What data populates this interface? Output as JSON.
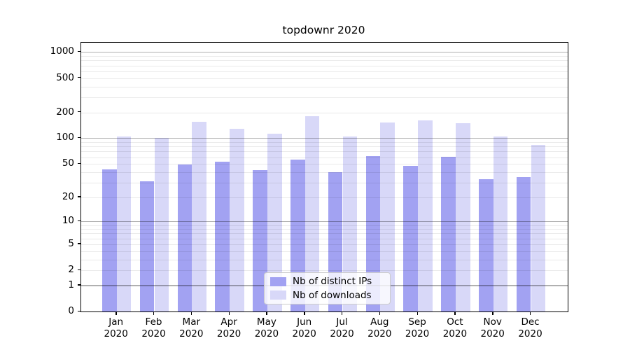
{
  "title": "topdownr 2020",
  "chart_data": {
    "type": "bar",
    "title": "topdownr 2020",
    "categories": [
      "Jan",
      "Feb",
      "Mar",
      "Apr",
      "May",
      "Jun",
      "Jul",
      "Aug",
      "Sep",
      "Oct",
      "Nov",
      "Dec"
    ],
    "x_tick_year": "2020",
    "series": [
      {
        "name": "Nb of distinct IPs",
        "color": "#a2a2f2",
        "values": [
          43,
          31,
          49,
          53,
          42,
          56,
          40,
          62,
          47,
          61,
          33,
          35
        ]
      },
      {
        "name": "Nb of downloads",
        "color": "#d8d8f8",
        "values": [
          104,
          101,
          155,
          129,
          112,
          180,
          105,
          153,
          161,
          149,
          104,
          84
        ]
      }
    ],
    "y_scale": "log1p",
    "ylim": [
      0,
      1285
    ],
    "y_ticks": [
      0,
      1,
      2,
      5,
      10,
      20,
      50,
      100,
      200,
      500,
      1000
    ],
    "y_tick_labels": [
      "0",
      "1",
      "2",
      "5",
      "10",
      "20",
      "50",
      "100",
      "200",
      "500",
      "1000"
    ],
    "major_grid_values": [
      1,
      10,
      100,
      1000
    ],
    "minor_grid_values": [
      2,
      3,
      4,
      5,
      6,
      7,
      8,
      9,
      20,
      30,
      40,
      50,
      60,
      70,
      80,
      90,
      200,
      300,
      400,
      500,
      600,
      700,
      800,
      900
    ],
    "grid": true,
    "legend_position": "lower center",
    "colors": {
      "major_grid": "#ababab",
      "minor_grid": "#eaeaea",
      "spine": "#000000",
      "background": "#ffffff"
    }
  },
  "legend": {
    "items": [
      {
        "label": "Nb of distinct IPs",
        "color": "#a2a2f2"
      },
      {
        "label": "Nb of downloads",
        "color": "#d8d8f8"
      }
    ]
  }
}
